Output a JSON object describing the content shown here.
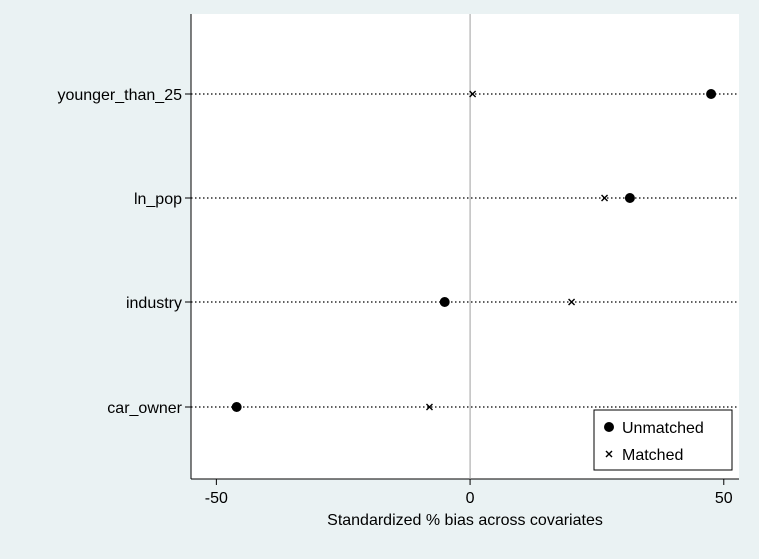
{
  "chart_data": {
    "type": "scatter",
    "title": "",
    "xlabel": "Standardized % bias across covariates",
    "ylabel": "",
    "xlim": [
      -55,
      53
    ],
    "xticks": [
      -50,
      0,
      50
    ],
    "categories": [
      "younger_than_25",
      "ln_pop",
      "industry",
      "car_owner"
    ],
    "series": [
      {
        "name": "Unmatched",
        "marker": "filled-circle",
        "values": [
          47.5,
          31.5,
          -5,
          -46
        ]
      },
      {
        "name": "Matched",
        "marker": "x",
        "values": [
          0.5,
          26.5,
          20,
          -8
        ]
      }
    ],
    "reference_line_x": 0,
    "grid": "dotted horizontal lines per category",
    "legend_position": "bottom-right",
    "colors": {
      "background": "#eaf2f3",
      "plot_area": "#ffffff",
      "marker": "#000000",
      "reference_line": "#a0a0a0"
    }
  }
}
